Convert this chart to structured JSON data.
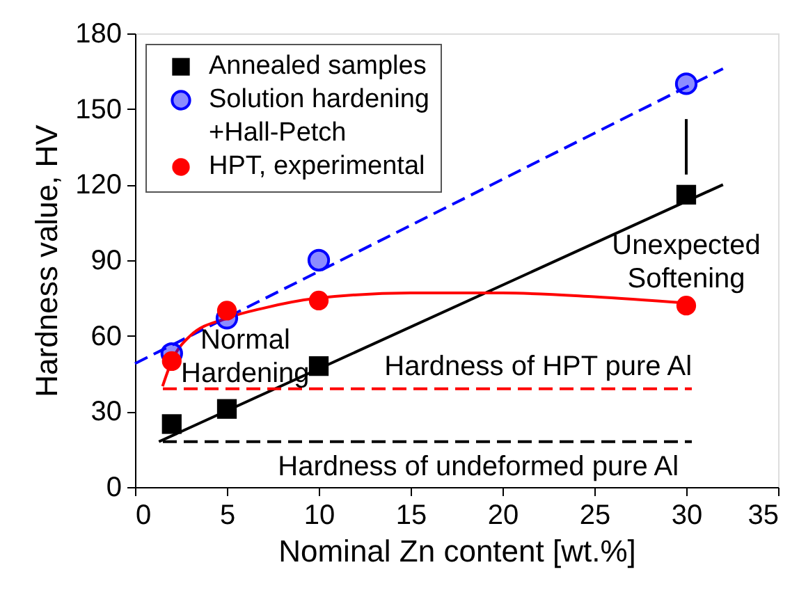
{
  "chart_data": {
    "type": "scatter",
    "xlabel": "Nominal Zn content [wt.%]",
    "ylabel": "Hardness value, HV",
    "xlim": [
      0,
      35
    ],
    "xticks": [
      0,
      5,
      10,
      15,
      20,
      25,
      30,
      35
    ],
    "ylim": [
      0,
      180
    ],
    "yticks": [
      0,
      30,
      60,
      90,
      120,
      150,
      180
    ],
    "grid": false,
    "legend": "top left",
    "series": [
      {
        "name": "Annealed samples",
        "type": "scatter",
        "marker": "square",
        "color": "#000000",
        "x": [
          2,
          5,
          10,
          30
        ],
        "values": [
          25,
          31,
          48,
          116
        ]
      },
      {
        "name": "Solution hardening\n+Hall-Petch",
        "type": "scatter",
        "marker": "half circle",
        "color": "#0000ff",
        "x": [
          2,
          5,
          10,
          30
        ],
        "values": [
          53,
          67,
          90,
          160
        ]
      },
      {
        "name": "HPT, experimental",
        "type": "scatter",
        "marker": "circle",
        "color": "#ff0000",
        "x": [
          2,
          5,
          10,
          30
        ],
        "values": [
          50,
          70,
          74,
          72
        ]
      },
      {
        "type": "line",
        "line_style": "solid",
        "color": "#000000",
        "x": [
          1.3,
          32
        ],
        "values": [
          18,
          120
        ]
      },
      {
        "type": "line",
        "line_style": "dashed",
        "color": "#0000ff",
        "x": [
          0,
          32
        ],
        "values": [
          49,
          166
        ]
      },
      {
        "type": "line",
        "line_style": "solid",
        "color": "#ff0000",
        "x": [
          1.5,
          2,
          3,
          5,
          7,
          10,
          15,
          20,
          25,
          30
        ],
        "values": [
          40,
          50,
          60,
          67,
          71,
          75,
          77,
          77,
          75.5,
          73
        ]
      },
      {
        "type": "line",
        "line_style": "solid",
        "color": "#000000",
        "x": [
          30,
          30
        ],
        "values": [
          146,
          124
        ]
      }
    ],
    "ref_lines": [
      {
        "axis": "y",
        "value": 39,
        "color": "#ff0000",
        "line_style": "dashed"
      },
      {
        "axis": "y",
        "value": 18,
        "color": "#000000",
        "line_style": "dashed"
      }
    ],
    "annotations": [
      {
        "text": "Normal\nHardening",
        "x": 6.3,
        "y": 67
      },
      {
        "text": "Unexpected\nSoftening",
        "x": 30,
        "y": 76
      },
      {
        "text": "Hardness of HPT pure Al",
        "x": 28,
        "y": 39
      },
      {
        "text": "Hardness of undeformed pure Al",
        "x": 25.5,
        "y": 18
      }
    ]
  }
}
